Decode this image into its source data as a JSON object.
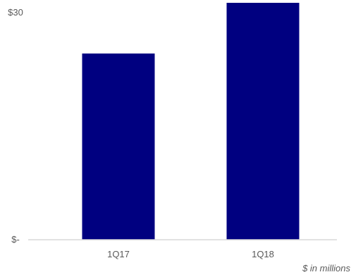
{
  "chart_data": {
    "type": "bar",
    "categories": [
      "1Q17",
      "1Q18"
    ],
    "values": [
      24.6,
      31.5
    ],
    "ylim": [
      0,
      30
    ],
    "yticks": [
      {
        "value": 0,
        "label": "$-"
      },
      {
        "value": 30,
        "label": "$30"
      }
    ],
    "title": "",
    "xlabel": "",
    "ylabel": "",
    "unit_note": "$ in millions",
    "grid": false,
    "legend": "none",
    "bar_color": "#000080",
    "axis_color": "#d9d9d9"
  }
}
